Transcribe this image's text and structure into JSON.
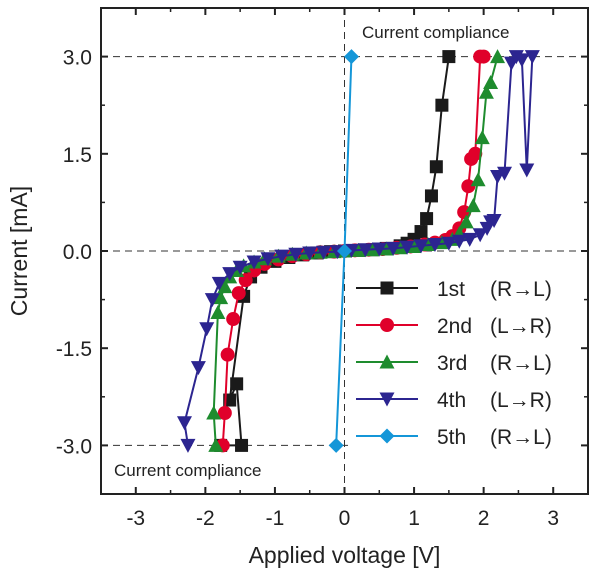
{
  "chart_data": {
    "type": "line",
    "title": "",
    "xlabel": "Applied voltage [V]",
    "ylabel": "Current [mA]",
    "xlim": [
      -3.5,
      3.5
    ],
    "ylim": [
      -3.75,
      3.75
    ],
    "x_ticks": [
      -3,
      -2,
      -1,
      0,
      1,
      2,
      3
    ],
    "x_tick_labels": [
      "-3",
      "-2",
      "-1",
      "0",
      "1",
      "2",
      "3"
    ],
    "y_ticks": [
      -3,
      -1.5,
      0,
      1.5,
      3
    ],
    "y_tick_labels": [
      "-3.0",
      "-1.5",
      "0.0",
      "1.5",
      "3.0"
    ],
    "grid": false,
    "legend_position": "bottom-right",
    "annotations": [
      {
        "text": "Current compliance",
        "anchor": "top-right"
      },
      {
        "text": "Current compliance",
        "anchor": "bottom-left"
      }
    ],
    "reference_lines": {
      "horizontal": [
        3.0,
        0.0,
        -3.0
      ],
      "vertical": [
        0.0
      ]
    },
    "series": [
      {
        "name": "1st",
        "direction": "(R→L)",
        "color": "#1a1a1a",
        "marker": "square",
        "points": [
          [
            -1.78,
            -3.0
          ],
          [
            -1.48,
            -3.0
          ],
          [
            -1.55,
            -2.05
          ],
          [
            -1.65,
            -2.3
          ],
          [
            -1.45,
            -0.7
          ],
          [
            -1.35,
            -0.4
          ],
          [
            -1.2,
            -0.25
          ],
          [
            -1.0,
            -0.16
          ],
          [
            -0.8,
            -0.1
          ],
          [
            -0.6,
            -0.06
          ],
          [
            -0.4,
            -0.03
          ],
          [
            -0.2,
            -0.01
          ],
          [
            0.0,
            0.0
          ],
          [
            0.2,
            0.01
          ],
          [
            0.4,
            0.02
          ],
          [
            0.6,
            0.04
          ],
          [
            0.8,
            0.08
          ],
          [
            0.9,
            0.12
          ],
          [
            1.0,
            0.18
          ],
          [
            1.1,
            0.3
          ],
          [
            1.18,
            0.5
          ],
          [
            1.25,
            0.85
          ],
          [
            1.32,
            1.3
          ],
          [
            1.4,
            2.25
          ],
          [
            1.5,
            3.0
          ]
        ]
      },
      {
        "name": "2nd",
        "direction": "(L→R)",
        "color": "#e0002a",
        "marker": "circle",
        "points": [
          [
            -1.75,
            -3.0
          ],
          [
            -1.72,
            -2.5
          ],
          [
            -1.68,
            -1.6
          ],
          [
            -1.6,
            -1.05
          ],
          [
            -1.52,
            -0.65
          ],
          [
            -1.42,
            -0.45
          ],
          [
            -1.3,
            -0.3
          ],
          [
            -1.15,
            -0.2
          ],
          [
            -0.95,
            -0.13
          ],
          [
            -0.75,
            -0.08
          ],
          [
            -0.55,
            -0.05
          ],
          [
            -0.35,
            -0.02
          ],
          [
            -0.15,
            -0.01
          ],
          [
            0.0,
            0.0
          ],
          [
            0.15,
            0.01
          ],
          [
            0.35,
            0.02
          ],
          [
            0.55,
            0.03
          ],
          [
            0.75,
            0.05
          ],
          [
            0.95,
            0.07
          ],
          [
            1.15,
            0.1
          ],
          [
            1.3,
            0.13
          ],
          [
            1.45,
            0.17
          ],
          [
            1.55,
            0.23
          ],
          [
            1.65,
            0.35
          ],
          [
            1.72,
            0.6
          ],
          [
            1.78,
            1.0
          ],
          [
            1.82,
            1.42
          ],
          [
            1.88,
            1.5
          ],
          [
            1.95,
            3.0
          ],
          [
            2.0,
            3.0
          ]
        ]
      },
      {
        "name": "3rd",
        "direction": "(R→L)",
        "color": "#1e8c2e",
        "marker": "triangle-up",
        "points": [
          [
            -1.85,
            -3.0
          ],
          [
            -1.88,
            -2.5
          ],
          [
            -1.82,
            -0.95
          ],
          [
            -1.78,
            -0.72
          ],
          [
            -1.72,
            -0.55
          ],
          [
            -1.65,
            -0.4
          ],
          [
            -1.55,
            -0.3
          ],
          [
            -1.45,
            -0.23
          ],
          [
            -1.3,
            -0.17
          ],
          [
            -1.15,
            -0.12
          ],
          [
            -0.95,
            -0.08
          ],
          [
            -0.75,
            -0.05
          ],
          [
            -0.55,
            -0.03
          ],
          [
            -0.35,
            -0.02
          ],
          [
            -0.15,
            -0.01
          ],
          [
            0.0,
            0.0
          ],
          [
            0.2,
            0.01
          ],
          [
            0.4,
            0.02
          ],
          [
            0.6,
            0.03
          ],
          [
            0.8,
            0.05
          ],
          [
            1.0,
            0.07
          ],
          [
            1.2,
            0.1
          ],
          [
            1.4,
            0.13
          ],
          [
            1.55,
            0.18
          ],
          [
            1.65,
            0.27
          ],
          [
            1.75,
            0.45
          ],
          [
            1.85,
            0.7
          ],
          [
            1.92,
            1.1
          ],
          [
            1.98,
            1.75
          ],
          [
            2.04,
            2.45
          ],
          [
            2.1,
            2.6
          ],
          [
            2.2,
            3.0
          ]
        ]
      },
      {
        "name": "4th",
        "direction": "(L→R)",
        "color": "#2c2590",
        "marker": "triangle-down",
        "points": [
          [
            -2.25,
            -3.0
          ],
          [
            -2.3,
            -2.65
          ],
          [
            -2.1,
            -1.8
          ],
          [
            -1.98,
            -1.2
          ],
          [
            -1.9,
            -0.75
          ],
          [
            -1.8,
            -0.5
          ],
          [
            -1.65,
            -0.35
          ],
          [
            -1.5,
            -0.25
          ],
          [
            -1.3,
            -0.17
          ],
          [
            -1.1,
            -0.12
          ],
          [
            -0.9,
            -0.08
          ],
          [
            -0.7,
            -0.05
          ],
          [
            -0.5,
            -0.03
          ],
          [
            -0.3,
            -0.02
          ],
          [
            -0.1,
            -0.01
          ],
          [
            0.1,
            0.01
          ],
          [
            0.3,
            0.02
          ],
          [
            0.5,
            0.03
          ],
          [
            0.7,
            0.04
          ],
          [
            0.9,
            0.06
          ],
          [
            1.1,
            0.08
          ],
          [
            1.3,
            0.1
          ],
          [
            1.5,
            0.12
          ],
          [
            1.65,
            0.15
          ],
          [
            1.8,
            0.18
          ],
          [
            1.95,
            0.25
          ],
          [
            2.05,
            0.35
          ],
          [
            2.1,
            0.45
          ],
          [
            2.15,
            0.47
          ],
          [
            2.2,
            1.15
          ],
          [
            2.3,
            1.2
          ],
          [
            2.4,
            2.9
          ],
          [
            2.47,
            3.0
          ],
          [
            2.55,
            2.95
          ],
          [
            2.62,
            1.25
          ],
          [
            2.7,
            3.0
          ]
        ]
      },
      {
        "name": "5th",
        "direction": "(R→L)",
        "color": "#1496d8",
        "marker": "diamond",
        "points": [
          [
            0.1,
            3.0
          ],
          [
            0.0,
            0.0
          ],
          [
            -0.12,
            -3.0
          ]
        ]
      }
    ]
  }
}
